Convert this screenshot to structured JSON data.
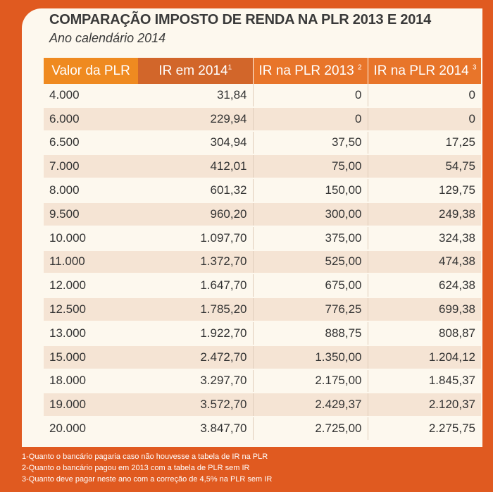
{
  "title": "COMPARAÇÃO IMPOSTO DE RENDA NA PLR 2013 E 2014",
  "subtitle": "Ano calendário 2014",
  "headers": [
    {
      "label": "Valor da PLR",
      "sup": ""
    },
    {
      "label": "IR em 2014",
      "sup": "1"
    },
    {
      "label": "IR na PLR 2013",
      "sup": "2"
    },
    {
      "label": "IR na PLR 2014",
      "sup": "3"
    }
  ],
  "rows": [
    [
      "4.000",
      "31,84",
      "0",
      "0"
    ],
    [
      "6.000",
      "229,94",
      "0",
      "0"
    ],
    [
      "6.500",
      "304,94",
      "37,50",
      "17,25"
    ],
    [
      "7.000",
      "412,01",
      "75,00",
      "54,75"
    ],
    [
      "8.000",
      "601,32",
      "150,00",
      "129,75"
    ],
    [
      "9.500",
      "960,20",
      "300,00",
      "249,38"
    ],
    [
      "10.000",
      "1.097,70",
      "375,00",
      "324,38"
    ],
    [
      "11.000",
      "1.372,70",
      "525,00",
      "474,38"
    ],
    [
      "12.000",
      "1.647,70",
      "675,00",
      "624,38"
    ],
    [
      "12.500",
      "1.785,20",
      "776,25",
      "699,38"
    ],
    [
      "13.000",
      "1.922,70",
      "888,75",
      "808,87"
    ],
    [
      "15.000",
      "2.472,70",
      "1.350,00",
      "1.204,12"
    ],
    [
      "18.000",
      "3.297,70",
      "2.175,00",
      "1.845,37"
    ],
    [
      "19.000",
      "3.572,70",
      "2.429,37",
      "2.120,37"
    ],
    [
      "20.000",
      "3.847,70",
      "2.725,00",
      "2.275,75"
    ]
  ],
  "notes": [
    "1-Quanto o bancário pagaria caso não houvesse a tabela de IR na PLR",
    "2-Quanto o bancário pagou em 2013 com a tabela de PLR sem IR",
    "3-Quanto deve pagar neste ano com a correção de 4,5% na PLR sem IR"
  ],
  "colors": {
    "background": "#e05a20",
    "panel": "#fdf8ee",
    "header_first": "#ef8a20",
    "header_second": "#d2662a",
    "header_rest": "#e8752a",
    "row_alt": "#f5e4d4"
  }
}
